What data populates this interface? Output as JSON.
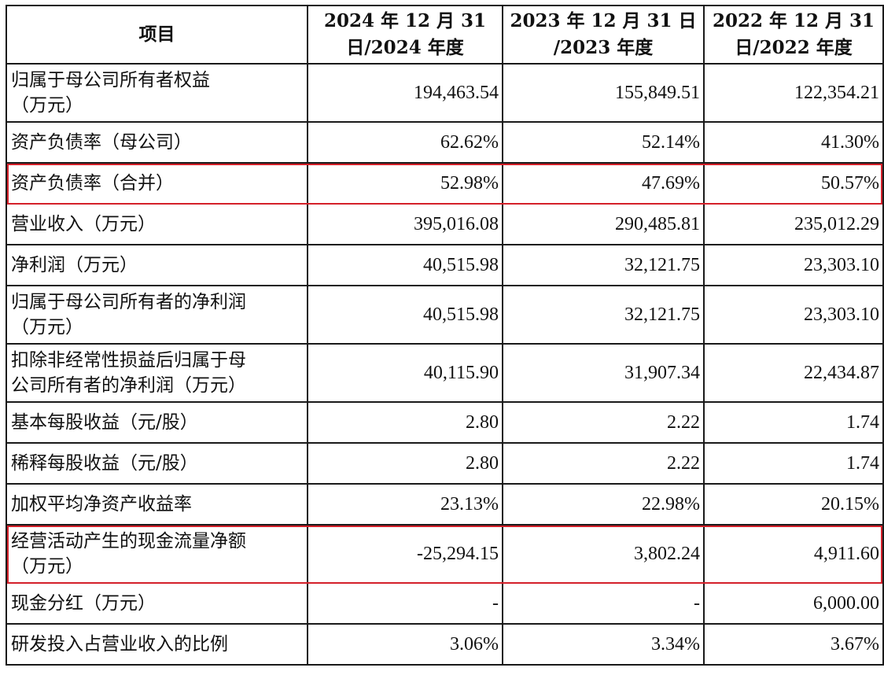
{
  "table": {
    "headers": [
      [
        "项目"
      ],
      [
        "2024 年 12 月 31",
        "日/2024 年度"
      ],
      [
        "2023 年 12 月 31 日",
        "/2023 年度"
      ],
      [
        "2022 年 12 月 31",
        "日/2022 年度"
      ]
    ],
    "rows": [
      {
        "label": [
          "归属于母公司所有者权益",
          "（万元）"
        ],
        "v2024": "194,463.54",
        "v2023": "155,849.51",
        "v2022": "122,354.21"
      },
      {
        "label": [
          "资产负债率（母公司）"
        ],
        "v2024": "62.62%",
        "v2023": "52.14%",
        "v2022": "41.30%"
      },
      {
        "label": [
          "资产负债率（合并）"
        ],
        "v2024": "52.98%",
        "v2023": "47.69%",
        "v2022": "50.57%",
        "highlight": true
      },
      {
        "label": [
          "营业收入（万元）"
        ],
        "v2024": "395,016.08",
        "v2023": "290,485.81",
        "v2022": "235,012.29"
      },
      {
        "label": [
          "净利润（万元）"
        ],
        "v2024": "40,515.98",
        "v2023": "32,121.75",
        "v2022": "23,303.10"
      },
      {
        "label": [
          "归属于母公司所有者的净利润",
          "（万元）"
        ],
        "v2024": "40,515.98",
        "v2023": "32,121.75",
        "v2022": "23,303.10"
      },
      {
        "label": [
          "扣除非经常性损益后归属于母",
          "公司所有者的净利润（万元）"
        ],
        "v2024": "40,115.90",
        "v2023": "31,907.34",
        "v2022": "22,434.87"
      },
      {
        "label": [
          "基本每股收益（元/股）"
        ],
        "v2024": "2.80",
        "v2023": "2.22",
        "v2022": "1.74"
      },
      {
        "label": [
          "稀释每股收益（元/股）"
        ],
        "v2024": "2.80",
        "v2023": "2.22",
        "v2022": "1.74"
      },
      {
        "label": [
          "加权平均净资产收益率"
        ],
        "v2024": "23.13%",
        "v2023": "22.98%",
        "v2022": "20.15%"
      },
      {
        "label": [
          "经营活动产生的现金流量净额",
          "（万元）"
        ],
        "v2024": "-25,294.15",
        "v2023": "3,802.24",
        "v2022": "4,911.60",
        "highlight": true
      },
      {
        "label": [
          "现金分红（万元）"
        ],
        "v2024": "-",
        "v2023": "-",
        "v2022": "6,000.00"
      },
      {
        "label": [
          "研发投入占营业收入的比例"
        ],
        "v2024": "3.06%",
        "v2023": "3.34%",
        "v2022": "3.67%"
      }
    ]
  },
  "colors": {
    "highlight": "#d4202a",
    "border": "#1a1a1a"
  }
}
